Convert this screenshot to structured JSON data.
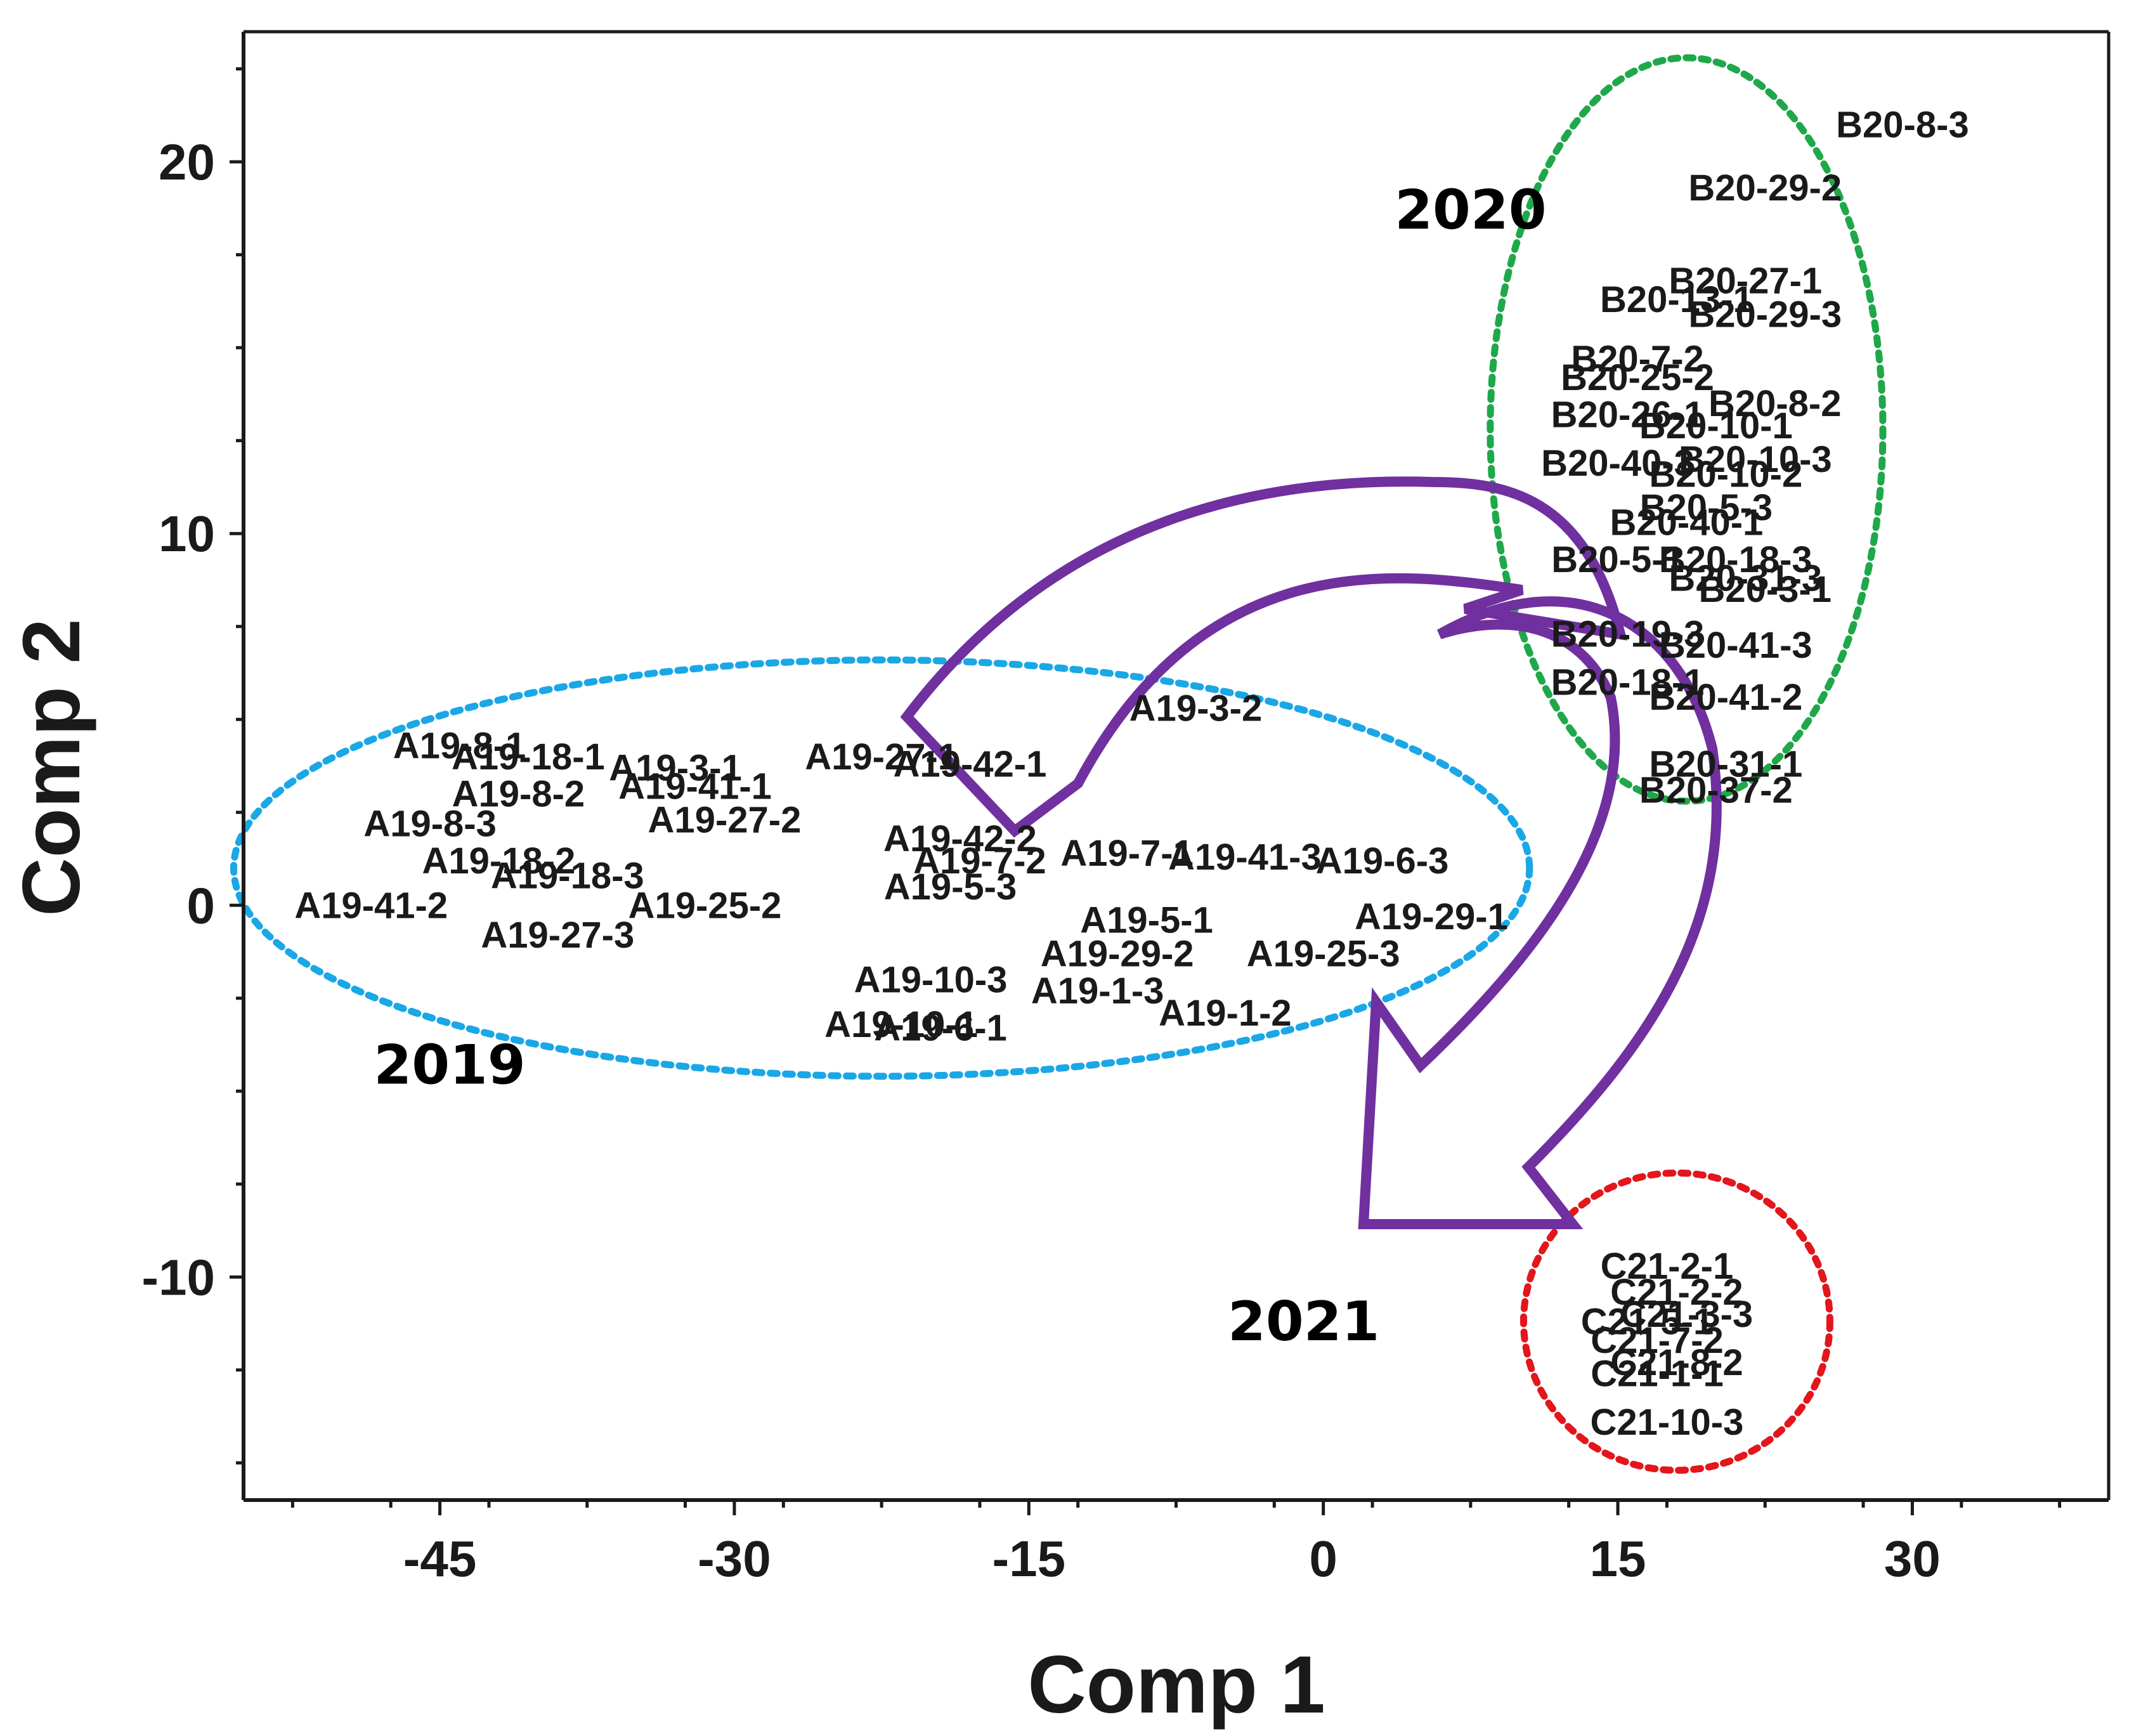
{
  "chart_data": {
    "type": "scatter",
    "title": "",
    "xlabel": "Comp 1",
    "ylabel": "Comp 2",
    "xlim": [
      -55,
      40
    ],
    "ylim": [
      -16,
      23.5
    ],
    "xticks": [
      -45,
      -30,
      -15,
      0,
      15,
      30
    ],
    "yticks": [
      20,
      10,
      0,
      -10
    ],
    "grid": false,
    "colors": {
      "axis": "#1a1a1a",
      "label": "#1a1a1a",
      "ellipse_2019": "#1aa7e6",
      "ellipse_2020": "#1fa84a",
      "ellipse_2021": "#e3161c",
      "arrow": "#7030a0"
    },
    "groups": [
      {
        "name": "2019",
        "label_at": [
          -44.5,
          -4.8
        ],
        "ellipse": {
          "cx": -22.5,
          "cy": 1.0,
          "rx": 33.0,
          "ry": 5.6,
          "color": "#1aa7e6"
        }
      },
      {
        "name": "2020",
        "label_at": [
          7.5,
          18.2
        ],
        "ellipse": {
          "cx": 18.5,
          "cy": 12.8,
          "rx": 10.0,
          "ry": 10.0,
          "color": "#1fa84a"
        }
      },
      {
        "name": "2021",
        "label_at": [
          -1.0,
          -11.7
        ],
        "ellipse": {
          "cx": 18.0,
          "cy": -11.2,
          "rx": 7.8,
          "ry": 4.0,
          "color": "#e3161c"
        }
      }
    ],
    "series": [
      {
        "name": "2019",
        "points": [
          {
            "label": "A19-8-1",
            "x": -44,
            "y": 4.3
          },
          {
            "label": "A19-18-1",
            "x": -40.5,
            "y": 4.0
          },
          {
            "label": "A19-8-2",
            "x": -41,
            "y": 3.0
          },
          {
            "label": "A19-3-1",
            "x": -33,
            "y": 3.7
          },
          {
            "label": "A19-41-1",
            "x": -32,
            "y": 3.2
          },
          {
            "label": "A19-27-1",
            "x": -22.5,
            "y": 4.0
          },
          {
            "label": "A19-42-1",
            "x": -18,
            "y": 3.8
          },
          {
            "label": "A19-8-3",
            "x": -45.5,
            "y": 2.2
          },
          {
            "label": "A19-27-2",
            "x": -30.5,
            "y": 2.3
          },
          {
            "label": "A19-18-2",
            "x": -42,
            "y": 1.2
          },
          {
            "label": "A19-18-3",
            "x": -38.5,
            "y": 0.8
          },
          {
            "label": "A19-41-2",
            "x": -48.5,
            "y": 0.0
          },
          {
            "label": "A19-25-2",
            "x": -31.5,
            "y": 0.0
          },
          {
            "label": "A19-27-3",
            "x": -39,
            "y": -0.8
          },
          {
            "label": "A19-3-2",
            "x": -6.5,
            "y": 5.3
          },
          {
            "label": "A19-42-2",
            "x": -18.5,
            "y": 1.8
          },
          {
            "label": "A19-7-2",
            "x": -17.5,
            "y": 1.2
          },
          {
            "label": "A19-7-1",
            "x": -10,
            "y": 1.4
          },
          {
            "label": "A19-41-3",
            "x": -4,
            "y": 1.3
          },
          {
            "label": "A19-6-3",
            "x": 3,
            "y": 1.2
          },
          {
            "label": "A19-5-3",
            "x": -19,
            "y": 0.5
          },
          {
            "label": "A19-5-1",
            "x": -9,
            "y": -0.4
          },
          {
            "label": "A19-29-1",
            "x": 5.5,
            "y": -0.3
          },
          {
            "label": "A19-25-3",
            "x": 0,
            "y": -1.3
          },
          {
            "label": "A19-29-2",
            "x": -10.5,
            "y": -1.3
          },
          {
            "label": "A19-10-3",
            "x": -20,
            "y": -2.0
          },
          {
            "label": "A19-1-3",
            "x": -11.5,
            "y": -2.3
          },
          {
            "label": "A19-1-2",
            "x": -5,
            "y": -2.9
          },
          {
            "label": "A19-6-1",
            "x": -19.5,
            "y": -3.3
          },
          {
            "label": "A19-10-1",
            "x": -21.5,
            "y": -3.2
          }
        ]
      },
      {
        "name": "2020",
        "points": [
          {
            "label": "B20-8-3",
            "x": 29.5,
            "y": 21.0
          },
          {
            "label": "B20-29-2",
            "x": 22.5,
            "y": 19.3
          },
          {
            "label": "B20-27-1",
            "x": 21.5,
            "y": 16.8
          },
          {
            "label": "B20-29-3",
            "x": 22.5,
            "y": 15.9
          },
          {
            "label": "B20-13-1",
            "x": 18,
            "y": 16.3
          },
          {
            "label": "B20-7-2",
            "x": 16.0,
            "y": 14.7
          },
          {
            "label": "B20-25-2",
            "x": 16.0,
            "y": 14.2
          },
          {
            "label": "B20-8-2",
            "x": 23,
            "y": 13.5
          },
          {
            "label": "B20-26-1",
            "x": 15.5,
            "y": 13.2
          },
          {
            "label": "B20-10-1",
            "x": 20,
            "y": 12.9
          },
          {
            "label": "B20-40-3",
            "x": 15.0,
            "y": 11.9
          },
          {
            "label": "B20-10-3",
            "x": 22,
            "y": 12.0
          },
          {
            "label": "B20-10-2",
            "x": 20.5,
            "y": 11.6
          },
          {
            "label": "B20-5-3",
            "x": 19.5,
            "y": 10.7
          },
          {
            "label": "B20-40-1",
            "x": 18.5,
            "y": 10.3
          },
          {
            "label": "B20-5-1",
            "x": 15.0,
            "y": 9.3
          },
          {
            "label": "B20-18-3",
            "x": 21,
            "y": 9.3
          },
          {
            "label": "B20-31-3",
            "x": 21.5,
            "y": 8.8
          },
          {
            "label": "B20-3-1",
            "x": 22.5,
            "y": 8.5
          },
          {
            "label": "B20-19-3",
            "x": 15.5,
            "y": 7.3
          },
          {
            "label": "B20-41-3",
            "x": 21,
            "y": 7.0
          },
          {
            "label": "B20-18-1",
            "x": 15.5,
            "y": 6.0
          },
          {
            "label": "B20-41-2",
            "x": 20.5,
            "y": 5.6
          },
          {
            "label": "B20-31-1",
            "x": 20.5,
            "y": 3.8
          },
          {
            "label": "B20-37-2",
            "x": 20,
            "y": 3.1
          }
        ]
      },
      {
        "name": "2021",
        "points": [
          {
            "label": "C21-2-1",
            "x": 17.5,
            "y": -9.7
          },
          {
            "label": "C21-2-2",
            "x": 18,
            "y": -10.4
          },
          {
            "label": "C21-3-3",
            "x": 18.5,
            "y": -11.0
          },
          {
            "label": "C21-5-1",
            "x": 16.5,
            "y": -11.2
          },
          {
            "label": "C21-7-2",
            "x": 17,
            "y": -11.7
          },
          {
            "label": "C21-8-2",
            "x": 18,
            "y": -12.3
          },
          {
            "label": "C21-1-1",
            "x": 17,
            "y": -12.6
          },
          {
            "label": "C21-10-3",
            "x": 17.5,
            "y": -13.9
          }
        ]
      }
    ],
    "arrows": [
      {
        "from": "2019",
        "to": "2020",
        "color": "#7030a0"
      },
      {
        "from": "2019",
        "to": "2021",
        "color": "#7030a0"
      },
      {
        "from": "2020",
        "to": "2021",
        "color": "#7030a0"
      }
    ]
  }
}
